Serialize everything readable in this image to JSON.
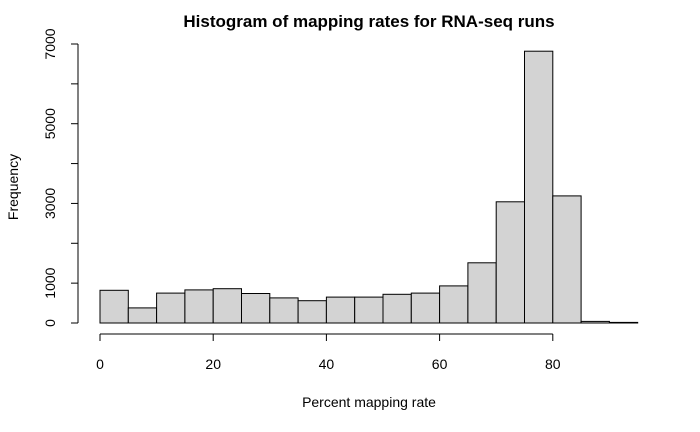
{
  "chart_data": {
    "type": "bar",
    "title": "Histogram of mapping rates for RNA-seq runs",
    "xlabel": "Percent mapping rate",
    "ylabel": "Frequency",
    "bin_width": 5,
    "bins": [
      {
        "start": 0,
        "end": 5,
        "value": 820
      },
      {
        "start": 5,
        "end": 10,
        "value": 380
      },
      {
        "start": 10,
        "end": 15,
        "value": 750
      },
      {
        "start": 15,
        "end": 20,
        "value": 830
      },
      {
        "start": 20,
        "end": 25,
        "value": 860
      },
      {
        "start": 25,
        "end": 30,
        "value": 740
      },
      {
        "start": 30,
        "end": 35,
        "value": 630
      },
      {
        "start": 35,
        "end": 40,
        "value": 560
      },
      {
        "start": 40,
        "end": 45,
        "value": 650
      },
      {
        "start": 45,
        "end": 50,
        "value": 650
      },
      {
        "start": 50,
        "end": 55,
        "value": 720
      },
      {
        "start": 55,
        "end": 60,
        "value": 750
      },
      {
        "start": 60,
        "end": 65,
        "value": 930
      },
      {
        "start": 65,
        "end": 70,
        "value": 1510
      },
      {
        "start": 70,
        "end": 75,
        "value": 3040
      },
      {
        "start": 75,
        "end": 80,
        "value": 6820
      },
      {
        "start": 80,
        "end": 85,
        "value": 3190
      },
      {
        "start": 85,
        "end": 90,
        "value": 40
      },
      {
        "start": 90,
        "end": 95,
        "value": 15
      }
    ],
    "xlim": [
      0,
      95
    ],
    "ylim": [
      0,
      7000
    ],
    "x_ticks": [
      0,
      20,
      40,
      60,
      80
    ],
    "y_ticks": [
      0,
      1000,
      2000,
      3000,
      4000,
      5000,
      6000,
      7000
    ],
    "y_tick_labels": [
      "0",
      "1000",
      "",
      "3000",
      "",
      "5000",
      "",
      "7000"
    ],
    "grid": false,
    "legend": "none"
  }
}
